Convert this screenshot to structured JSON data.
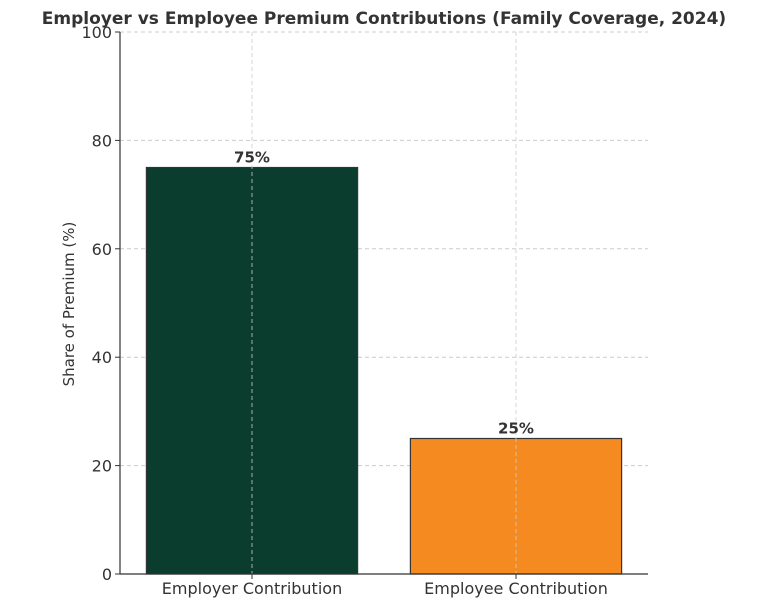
{
  "chart_data": {
    "type": "bar",
    "title": "Employer vs Employee Premium Contributions (Family Coverage, 2024)",
    "xlabel": "",
    "ylabel": "Share of Premium (%)",
    "ylim": [
      0,
      100
    ],
    "yticks": [
      0,
      20,
      40,
      60,
      80,
      100
    ],
    "categories": [
      "Employer Contribution",
      "Employee Contribution"
    ],
    "values": [
      75,
      25
    ],
    "data_labels": [
      "75%",
      "25%"
    ],
    "colors": [
      "#0b3d2e",
      "#f58b20"
    ],
    "grid": true
  }
}
